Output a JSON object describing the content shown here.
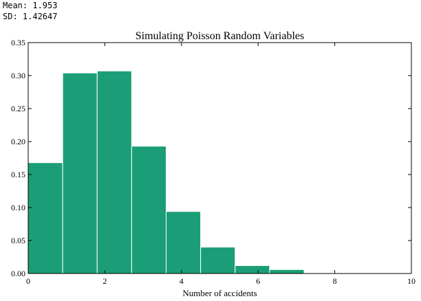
{
  "stats": {
    "mean_label": "Mean: 1.953",
    "sd_label": "SD: 1.42647"
  },
  "chart_data": {
    "type": "bar",
    "title": "Simulating Poisson Random Variables",
    "xlabel": "Number of accidents",
    "ylabel": "",
    "xlim": [
      0,
      10
    ],
    "ylim": [
      0,
      0.35
    ],
    "xticks": [
      0,
      2,
      4,
      6,
      8,
      10
    ],
    "yticks": [
      "0.00",
      "0.05",
      "0.10",
      "0.15",
      "0.20",
      "0.25",
      "0.30",
      "0.35"
    ],
    "grid": false,
    "bin_edges": [
      0,
      0.9,
      1.8,
      2.7,
      3.6,
      4.5,
      5.4,
      6.3,
      7.2,
      8.1,
      9.0
    ],
    "values": [
      0.168,
      0.304,
      0.307,
      0.193,
      0.094,
      0.04,
      0.012,
      0.006,
      0.0,
      0.0
    ],
    "bar_color": "#1b9e77",
    "edge_color": "#ffffff"
  }
}
